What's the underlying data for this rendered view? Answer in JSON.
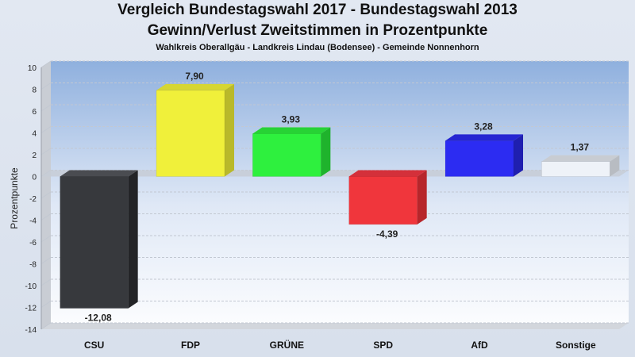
{
  "chart_data": {
    "type": "bar",
    "title": "Vergleich Bundestagswahl 2017 - Bundestagswahl 2013",
    "subtitle": "Gewinn/Verlust Zweitstimmen in Prozentpunkte",
    "subtitle2": "Wahlkreis Oberallgäu - Landkreis Lindau (Bodensee) - Gemeinde Nonnenhorn",
    "ylabel": "Prozentpunkte",
    "xlabel": "",
    "ylim": [
      -14,
      10
    ],
    "yticks": [
      10,
      8,
      6,
      4,
      2,
      0,
      -2,
      -4,
      -6,
      -8,
      -10,
      -12,
      -14
    ],
    "grid": true,
    "categories": [
      "CSU",
      "FDP",
      "GRÜNE",
      "SPD",
      "AfD",
      "Sonstige"
    ],
    "values": [
      -12.08,
      7.9,
      3.93,
      -4.39,
      3.28,
      1.37
    ],
    "value_labels": [
      "-12,08",
      "7,90",
      "3,93",
      "-4,39",
      "3,28",
      "1,37"
    ],
    "colors": [
      "#37393d",
      "#f0f03a",
      "#2ef03e",
      "#f0363c",
      "#2c2cf2",
      "#eef2f8"
    ],
    "side_colors": [
      "#232427",
      "#b9b92a",
      "#1fb32c",
      "#b7262b",
      "#1f1fb0",
      "#b8bcc2"
    ],
    "top_colors": [
      "#4a4c51",
      "#d6d632",
      "#27d235",
      "#d4303a",
      "#2525d2",
      "#c8ccd2"
    ]
  }
}
